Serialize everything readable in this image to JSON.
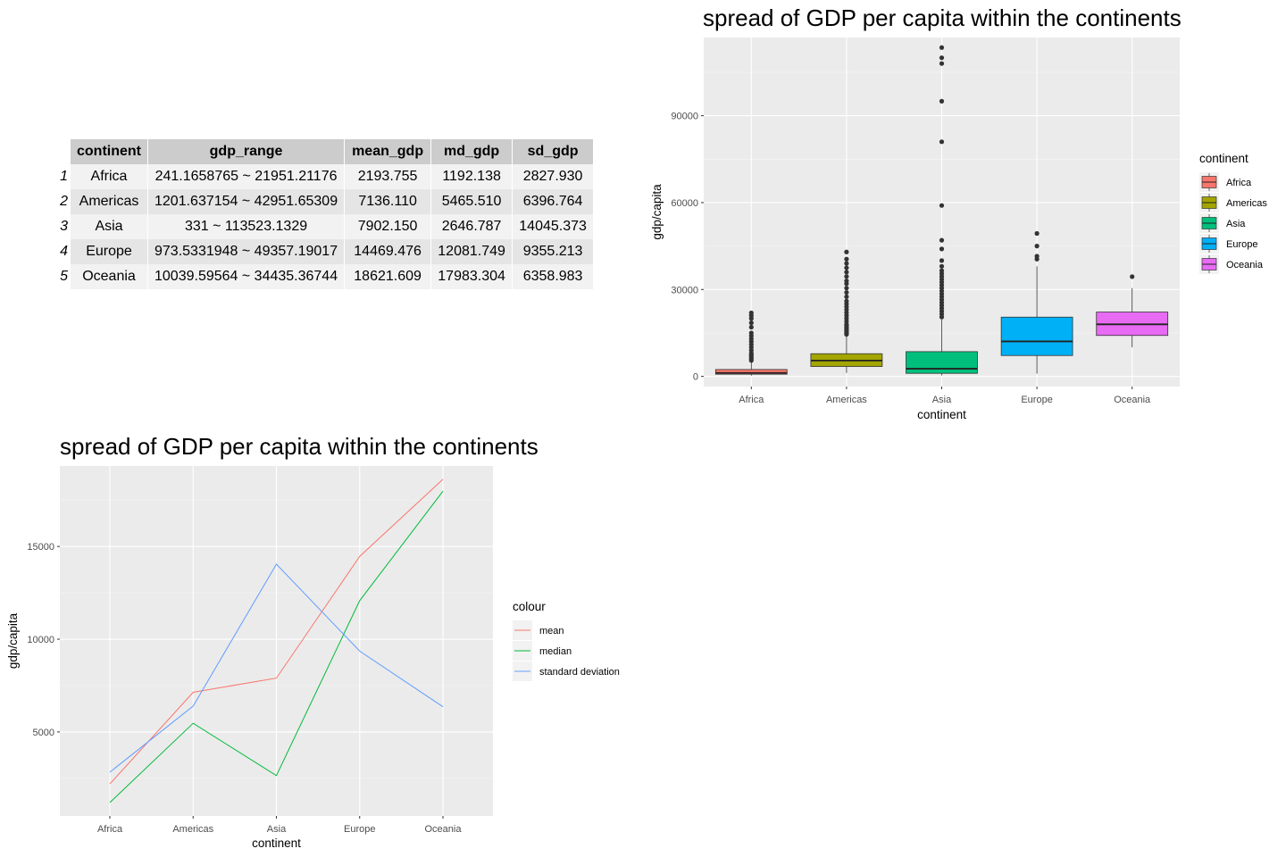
{
  "table": {
    "columns": [
      "continent",
      "gdp_range",
      "mean_gdp",
      "md_gdp",
      "sd_gdp"
    ],
    "rows": [
      {
        "index": "1",
        "continent": "Africa",
        "gdp_range": "241.1658765 ~ 21951.21176",
        "mean_gdp": "2193.755",
        "md_gdp": "1192.138",
        "sd_gdp": "2827.930"
      },
      {
        "index": "2",
        "continent": "Americas",
        "gdp_range": "1201.637154 ~ 42951.65309",
        "mean_gdp": "7136.110",
        "md_gdp": "5465.510",
        "sd_gdp": "6396.764"
      },
      {
        "index": "3",
        "continent": "Asia",
        "gdp_range": "331 ~ 113523.1329",
        "mean_gdp": "7902.150",
        "md_gdp": "2646.787",
        "sd_gdp": "14045.373"
      },
      {
        "index": "4",
        "continent": "Europe",
        "gdp_range": "973.5331948 ~ 49357.19017",
        "mean_gdp": "14469.476",
        "md_gdp": "12081.749",
        "sd_gdp": "9355.213"
      },
      {
        "index": "5",
        "continent": "Oceania",
        "gdp_range": "10039.59564 ~ 34435.36744",
        "mean_gdp": "18621.609",
        "md_gdp": "17983.304",
        "sd_gdp": "6358.983"
      }
    ]
  },
  "chart_data": [
    {
      "type": "box",
      "title": "spread of GDP per capita within the continents",
      "xlabel": "continent",
      "ylabel": "gdp/capita",
      "categories": [
        "Africa",
        "Americas",
        "Asia",
        "Europe",
        "Oceania"
      ],
      "ylim": [
        -3500,
        117000
      ],
      "yticks": [
        0,
        30000,
        60000,
        90000
      ],
      "grid": true,
      "legend": {
        "title": "continent",
        "position": "right"
      },
      "colors": [
        "#F8766D",
        "#A3A500",
        "#00BF7D",
        "#00B0F6",
        "#E76BF3"
      ],
      "boxes": [
        {
          "min": 241.17,
          "q1": 761,
          "median": 1192,
          "q3": 2377,
          "whisker_high": 5000,
          "outliers": [
            5500,
            6000,
            6500,
            7000,
            7500,
            8000,
            9000,
            10000,
            11000,
            12000,
            13000,
            14000,
            15000,
            17000,
            18500,
            20000,
            21000,
            21951
          ]
        },
        {
          "min": 1201.64,
          "q1": 3428,
          "median": 5466,
          "q3": 7830,
          "whisker_high": 14000,
          "outliers": [
            14500,
            15000,
            15500,
            16000,
            16500,
            17000,
            17500,
            18000,
            19000,
            20000,
            21000,
            22000,
            23000,
            24000,
            25000,
            26000,
            27500,
            29000,
            30500,
            32000,
            33000,
            34500,
            36000,
            37500,
            39000,
            40500,
            42951
          ]
        },
        {
          "min": 331,
          "q1": 1057,
          "median": 2647,
          "q3": 8549,
          "whisker_high": 19600,
          "outliers": [
            20500,
            21500,
            22500,
            23500,
            24500,
            25500,
            26500,
            27500,
            28500,
            29500,
            30500,
            31500,
            32500,
            33500,
            34500,
            35500,
            36500,
            38000,
            40000,
            44000,
            47000,
            59000,
            81000,
            95000,
            108000,
            110000,
            113523
          ]
        },
        {
          "min": 973.53,
          "q1": 7213,
          "median": 12082,
          "q3": 20461,
          "whisker_high": 38000,
          "outliers": [
            40500,
            41500,
            45000,
            49357
          ]
        },
        {
          "min": 10039.6,
          "q1": 14142,
          "median": 17983,
          "q3": 22214,
          "whisker_high": 30500,
          "outliers": [
            34435
          ]
        }
      ]
    },
    {
      "type": "line",
      "title": "spread of GDP per capita within the continents",
      "xlabel": "continent",
      "ylabel": "gdp/capita",
      "categories": [
        "Africa",
        "Americas",
        "Asia",
        "Europe",
        "Oceania"
      ],
      "ylim": [
        470,
        19340
      ],
      "yticks": [
        5000,
        10000,
        15000
      ],
      "grid": true,
      "legend": {
        "title": "colour",
        "position": "right"
      },
      "series": [
        {
          "name": "mean",
          "color": "#F8766D",
          "values": [
            2193.755,
            7136.11,
            7902.15,
            14469.476,
            18621.609
          ]
        },
        {
          "name": "median",
          "color": "#00BA38",
          "values": [
            1192.138,
            5465.51,
            2646.787,
            12081.749,
            17983.304
          ]
        },
        {
          "name": "standard deviation",
          "color": "#619CFF",
          "values": [
            2827.93,
            6396.764,
            14045.373,
            9355.213,
            6358.983
          ]
        }
      ]
    }
  ]
}
